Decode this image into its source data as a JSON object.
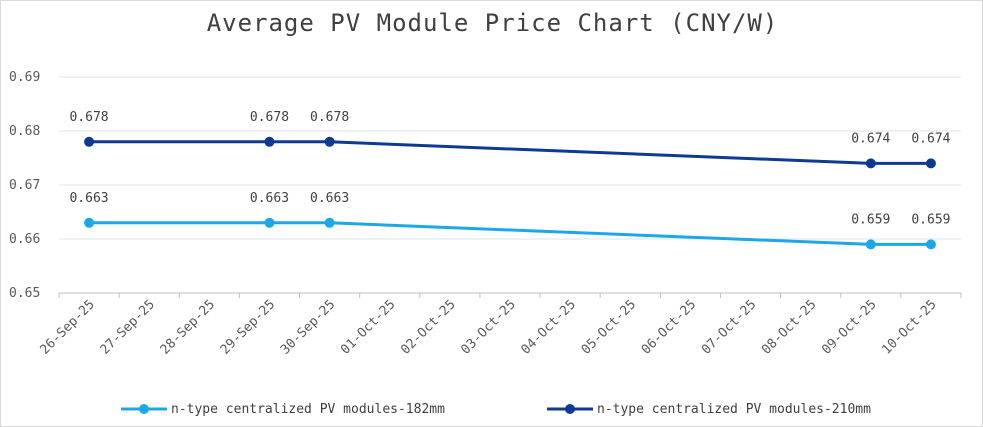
{
  "chart_data": {
    "type": "line",
    "title": "Average PV Module Price Chart (CNY/W)",
    "xlabel": "",
    "ylabel": "",
    "ylim": [
      0.65,
      0.69
    ],
    "yticks": [
      0.65,
      0.66,
      0.67,
      0.68,
      0.69
    ],
    "ytick_labels": [
      "0.65",
      "0.66",
      "0.67",
      "0.68",
      "0.69"
    ],
    "grid": "horizontal",
    "legend_position": "bottom",
    "categories": [
      "26-Sep-25",
      "27-Sep-25",
      "28-Sep-25",
      "29-Sep-25",
      "30-Sep-25",
      "01-Oct-25",
      "02-Oct-25",
      "03-Oct-25",
      "04-Oct-25",
      "05-Oct-25",
      "06-Oct-25",
      "07-Oct-25",
      "08-Oct-25",
      "09-Oct-25",
      "10-Oct-25"
    ],
    "series": [
      {
        "name": "n-type centralized PV modules-182mm",
        "color": "#1ea7e8",
        "points": [
          {
            "x": "26-Sep-25",
            "y": 0.663,
            "label": "0.663"
          },
          {
            "x": "29-Sep-25",
            "y": 0.663,
            "label": "0.663"
          },
          {
            "x": "30-Sep-25",
            "y": 0.663,
            "label": "0.663"
          },
          {
            "x": "09-Oct-25",
            "y": 0.659,
            "label": "0.659"
          },
          {
            "x": "10-Oct-25",
            "y": 0.659,
            "label": "0.659"
          }
        ]
      },
      {
        "name": "n-type centralized PV modules-210mm",
        "color": "#0e3a94",
        "points": [
          {
            "x": "26-Sep-25",
            "y": 0.678,
            "label": "0.678"
          },
          {
            "x": "29-Sep-25",
            "y": 0.678,
            "label": "0.678"
          },
          {
            "x": "30-Sep-25",
            "y": 0.678,
            "label": "0.678"
          },
          {
            "x": "09-Oct-25",
            "y": 0.674,
            "label": "0.674"
          },
          {
            "x": "10-Oct-25",
            "y": 0.674,
            "label": "0.674"
          }
        ]
      }
    ]
  }
}
